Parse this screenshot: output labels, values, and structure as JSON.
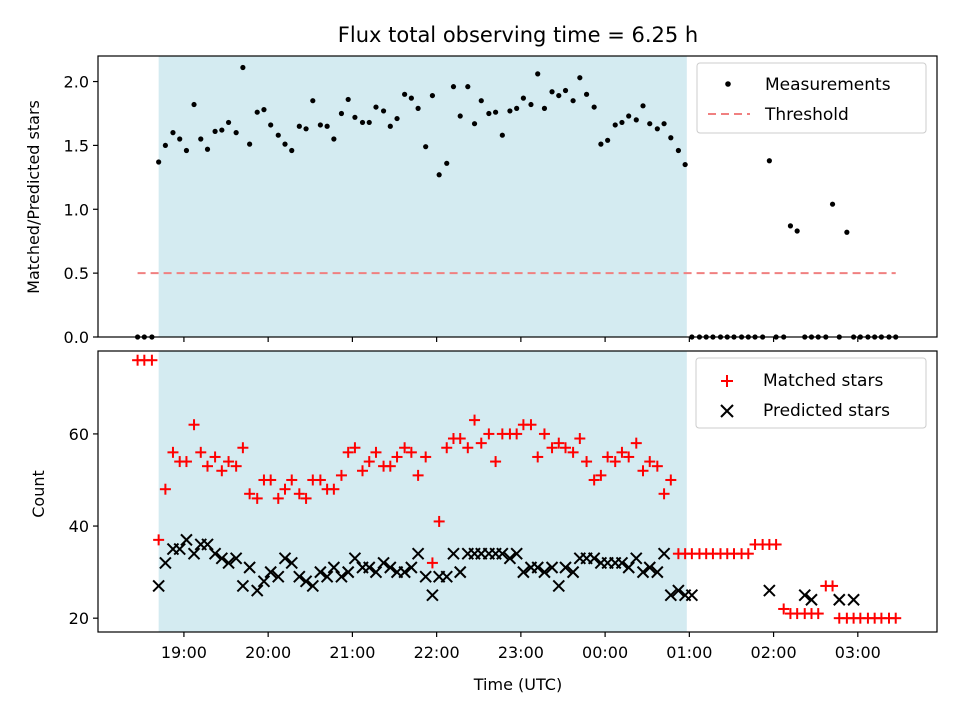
{
  "figure": {
    "title": "Flux total observing time = 6.25 h"
  },
  "colors": {
    "band": "#d4ebf1",
    "matched": "#ff0000",
    "predicted": "#000000",
    "threshold": "#f08080",
    "measurement": "#000000"
  },
  "chart_data": [
    {
      "type": "scatter",
      "panel": "top",
      "ylabel": "Matched/Predicted stars",
      "xlabel": "",
      "ylim": [
        0,
        2.2
      ],
      "xlim_hours": [
        17.98,
        27.94
      ],
      "yticks": [
        0.0,
        0.5,
        1.0,
        1.5,
        2.0
      ],
      "ytick_labels": [
        "0.0",
        "0.5",
        "1.0",
        "1.5",
        "2.0"
      ],
      "legend": {
        "position": "top-right",
        "entries": [
          "Measurements",
          "Threshold"
        ]
      },
      "shaded_interval_hours": [
        18.7,
        24.97
      ],
      "threshold": {
        "name": "Threshold",
        "y": 0.5,
        "x_hours": [
          18.45,
          27.45
        ]
      },
      "series": [
        {
          "name": "Measurements",
          "x_hours": [
            18.45,
            18.53,
            18.62,
            18.7,
            18.78,
            18.87,
            18.95,
            19.03,
            19.12,
            19.2,
            19.28,
            19.37,
            19.45,
            19.53,
            19.62,
            19.7,
            19.78,
            19.87,
            19.95,
            20.03,
            20.12,
            20.2,
            20.28,
            20.37,
            20.45,
            20.53,
            20.62,
            20.7,
            20.78,
            20.87,
            20.95,
            21.03,
            21.12,
            21.2,
            21.28,
            21.37,
            21.45,
            21.53,
            21.62,
            21.7,
            21.78,
            21.87,
            21.95,
            22.03,
            22.12,
            22.2,
            22.28,
            22.37,
            22.45,
            22.53,
            22.62,
            22.7,
            22.78,
            22.87,
            22.95,
            23.03,
            23.12,
            23.2,
            23.28,
            23.37,
            23.45,
            23.53,
            23.62,
            23.7,
            23.78,
            23.87,
            23.95,
            24.03,
            24.12,
            24.2,
            24.28,
            24.37,
            24.45,
            24.53,
            24.62,
            24.7,
            24.78,
            24.87,
            24.95,
            25.03,
            25.12,
            25.2,
            25.28,
            25.37,
            25.45,
            25.53,
            25.62,
            25.7,
            25.78,
            25.87,
            25.95,
            26.03,
            26.12,
            26.2,
            26.28,
            26.37,
            26.45,
            26.53,
            26.62,
            26.7,
            26.78,
            26.87,
            26.95,
            27.03,
            27.12,
            27.2,
            27.28,
            27.37,
            27.45
          ],
          "y": [
            0,
            0,
            0,
            1.37,
            1.5,
            1.6,
            1.55,
            1.46,
            1.82,
            1.55,
            1.47,
            1.61,
            1.62,
            1.68,
            1.6,
            2.11,
            1.51,
            1.76,
            1.78,
            1.66,
            1.58,
            1.51,
            1.46,
            1.65,
            1.63,
            1.85,
            1.66,
            1.65,
            1.55,
            1.75,
            1.86,
            1.72,
            1.68,
            1.68,
            1.8,
            1.77,
            1.65,
            1.71,
            1.9,
            1.87,
            1.79,
            1.49,
            1.89,
            1.27,
            1.36,
            1.96,
            1.73,
            1.96,
            1.67,
            1.85,
            1.75,
            1.76,
            1.58,
            1.77,
            1.79,
            1.87,
            1.82,
            2.06,
            1.79,
            1.92,
            1.89,
            1.93,
            1.85,
            2.03,
            1.9,
            1.8,
            1.51,
            1.54,
            1.66,
            1.68,
            1.73,
            1.7,
            1.81,
            1.67,
            1.63,
            1.67,
            1.56,
            1.46,
            1.35,
            0,
            0,
            0,
            0,
            0,
            0,
            0,
            0,
            0,
            0,
            0,
            1.38,
            0,
            0,
            0.87,
            0.83,
            0,
            0,
            0,
            0,
            1.04,
            0,
            0.82,
            0,
            0,
            0,
            0,
            0,
            0,
            0
          ]
        }
      ]
    },
    {
      "type": "scatter",
      "panel": "bottom",
      "ylabel": "Count",
      "xlabel": "Time (UTC)",
      "ylim": [
        17,
        78
      ],
      "xlim_hours": [
        17.98,
        27.94
      ],
      "yticks": [
        20,
        40,
        60
      ],
      "ytick_labels": [
        "20",
        "40",
        "60"
      ],
      "xticks_hours": [
        19,
        20,
        21,
        22,
        23,
        24,
        25,
        26,
        27
      ],
      "xtick_labels": [
        "19:00",
        "20:00",
        "21:00",
        "22:00",
        "23:00",
        "00:00",
        "01:00",
        "02:00",
        "03:00"
      ],
      "legend": {
        "position": "top-right",
        "entries": [
          "Matched stars",
          "Predicted stars"
        ]
      },
      "shaded_interval_hours": [
        18.7,
        24.97
      ],
      "series": [
        {
          "name": "Matched stars",
          "x_hours": [
            18.45,
            18.53,
            18.62,
            18.7,
            18.78,
            18.87,
            18.95,
            19.03,
            19.12,
            19.2,
            19.28,
            19.37,
            19.45,
            19.53,
            19.62,
            19.7,
            19.78,
            19.87,
            19.95,
            20.03,
            20.12,
            20.2,
            20.28,
            20.37,
            20.45,
            20.53,
            20.62,
            20.7,
            20.78,
            20.87,
            20.95,
            21.03,
            21.12,
            21.2,
            21.28,
            21.37,
            21.45,
            21.53,
            21.62,
            21.7,
            21.78,
            21.87,
            21.95,
            22.03,
            22.12,
            22.2,
            22.28,
            22.37,
            22.45,
            22.53,
            22.62,
            22.7,
            22.78,
            22.87,
            22.95,
            23.03,
            23.12,
            23.2,
            23.28,
            23.37,
            23.45,
            23.53,
            23.62,
            23.7,
            23.78,
            23.87,
            23.95,
            24.03,
            24.12,
            24.2,
            24.28,
            24.37,
            24.45,
            24.53,
            24.62,
            24.7,
            24.78,
            24.87,
            24.95,
            25.03,
            25.12,
            25.2,
            25.28,
            25.37,
            25.45,
            25.53,
            25.62,
            25.7,
            25.78,
            25.87,
            25.95,
            26.03,
            26.12,
            26.2,
            26.28,
            26.37,
            26.45,
            26.53,
            26.62,
            26.7,
            26.78,
            26.87,
            26.95,
            27.03,
            27.12,
            27.2,
            27.28,
            27.37,
            27.45
          ],
          "y": [
            76,
            76,
            76,
            37,
            48,
            56,
            54,
            54,
            62,
            56,
            53,
            55,
            52,
            54,
            53,
            57,
            47,
            46,
            50,
            50,
            46,
            48,
            50,
            47,
            46,
            50,
            50,
            48,
            48,
            51,
            56,
            57,
            52,
            54,
            56,
            53,
            53,
            55,
            57,
            56,
            51,
            55,
            32,
            41,
            57,
            59,
            59,
            57,
            63,
            58,
            60,
            54,
            60,
            60,
            60,
            62,
            62,
            55,
            60,
            57,
            58,
            57,
            56,
            59,
            54,
            50,
            51,
            55,
            54,
            56,
            55,
            58,
            52,
            54,
            53,
            47,
            50,
            34,
            34,
            34,
            34,
            34,
            34,
            34,
            34,
            34,
            34,
            34,
            36,
            36,
            36,
            36,
            22,
            21,
            21,
            21,
            21,
            21,
            27,
            27,
            20,
            20,
            20,
            20,
            20,
            20,
            20,
            20,
            20
          ]
        },
        {
          "name": "Predicted stars",
          "x_hours": [
            18.7,
            18.78,
            18.87,
            18.95,
            19.03,
            19.12,
            19.2,
            19.28,
            19.37,
            19.45,
            19.53,
            19.62,
            19.7,
            19.78,
            19.87,
            19.95,
            20.03,
            20.12,
            20.2,
            20.28,
            20.37,
            20.45,
            20.53,
            20.62,
            20.7,
            20.78,
            20.87,
            20.95,
            21.03,
            21.12,
            21.2,
            21.28,
            21.37,
            21.45,
            21.53,
            21.62,
            21.7,
            21.78,
            21.87,
            21.95,
            22.03,
            22.12,
            22.2,
            22.28,
            22.37,
            22.45,
            22.53,
            22.62,
            22.7,
            22.78,
            22.87,
            22.95,
            23.03,
            23.12,
            23.2,
            23.28,
            23.37,
            23.45,
            23.53,
            23.62,
            23.7,
            23.78,
            23.87,
            23.95,
            24.03,
            24.12,
            24.2,
            24.28,
            24.37,
            24.45,
            24.53,
            24.62,
            24.7,
            24.78,
            24.87,
            24.95,
            25.03,
            25.95,
            26.37,
            26.45,
            26.78,
            26.95
          ],
          "y": [
            27,
            32,
            35,
            35,
            37,
            34,
            36,
            36,
            34,
            33,
            32,
            33,
            27,
            31,
            26,
            28,
            30,
            29,
            33,
            32,
            29,
            28,
            27,
            30,
            29,
            31,
            29,
            30,
            33,
            31,
            31,
            30,
            32,
            31,
            30,
            30,
            31,
            34,
            29,
            25,
            29,
            29,
            34,
            30,
            34,
            34,
            34,
            34,
            34,
            34,
            33,
            34,
            30,
            31,
            31,
            30,
            31,
            27,
            31,
            30,
            33,
            33,
            33,
            32,
            32,
            32,
            32,
            31,
            33,
            30,
            31,
            30,
            34,
            25,
            26,
            25,
            25,
            26,
            25,
            24,
            24,
            24
          ]
        }
      ]
    }
  ]
}
